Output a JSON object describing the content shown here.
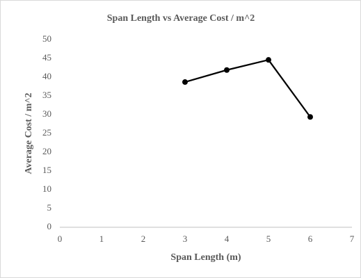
{
  "chart_data": {
    "type": "line",
    "title": "Span Length vs Average Cost / m^2",
    "x_label": "Span Length (m)",
    "y_label": "Average Cost / m^2",
    "series": [
      {
        "name": "Average Cost",
        "color": "#000000",
        "x": [
          3,
          4,
          5,
          6
        ],
        "values": [
          38.7,
          41.9,
          44.6,
          29.4
        ]
      }
    ],
    "xlim": [
      0,
      7
    ],
    "xticks": [
      0,
      1,
      2,
      3,
      4,
      5,
      6,
      7
    ],
    "ylim": [
      0,
      50
    ],
    "yticks": [
      0,
      5,
      10,
      15,
      20,
      25,
      30,
      35,
      40,
      45,
      50
    ],
    "grid": false,
    "markers": true
  }
}
